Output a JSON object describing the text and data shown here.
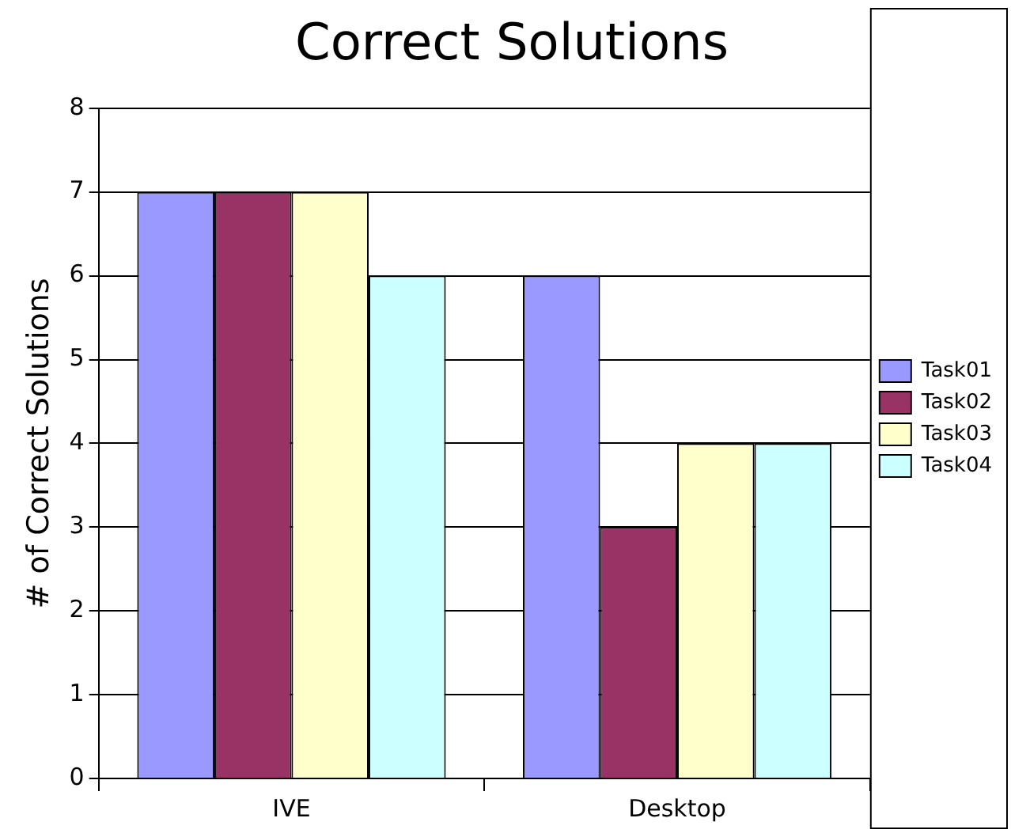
{
  "chart_data": {
    "type": "bar",
    "title": "Correct Solutions",
    "ylabel": "# of Correct Solutions",
    "categories": [
      "IVE",
      "Desktop"
    ],
    "series": [
      {
        "name": "Task01",
        "color": "#9999ff",
        "values": [
          7,
          6
        ]
      },
      {
        "name": "Task02",
        "color": "#993366",
        "values": [
          7,
          3
        ]
      },
      {
        "name": "Task03",
        "color": "#ffffcc",
        "values": [
          7,
          4
        ]
      },
      {
        "name": "Task04",
        "color": "#ccffff",
        "values": [
          6,
          4
        ]
      }
    ],
    "ylim": [
      0,
      8
    ],
    "yticks": [
      0,
      1,
      2,
      3,
      4,
      5,
      6,
      7,
      8
    ],
    "grid": "y",
    "legend": "right"
  }
}
